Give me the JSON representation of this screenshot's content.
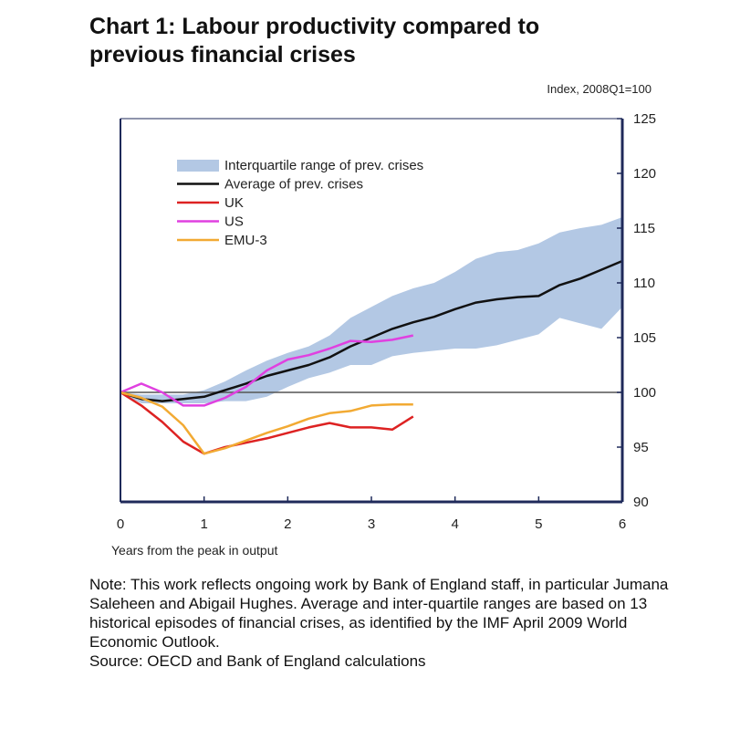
{
  "header": {
    "title_line1": "Chart 1: Labour productivity compared to",
    "title_line2": "previous financial crises",
    "units": "Index, 2008Q1=100"
  },
  "footer": {
    "note": "Note: This work reflects ongoing work by Bank of England staff, in particular Jumana Saleheen and Abigail Hughes.  Average and inter-quartile ranges are based on 13 historical episodes of financial crises, as identified by the IMF April 2009 World Economic Outlook.",
    "source": "Source: OECD and Bank of England calculations"
  },
  "chart_data": {
    "type": "line",
    "title": "Chart 1: Labour productivity compared to previous financial crises",
    "xlabel": "Years from the peak in output",
    "ylabel": "Index, 2008Q1=100",
    "xlim": [
      0,
      6
    ],
    "ylim": [
      90,
      125
    ],
    "x_ticks": [
      "0",
      "1",
      "2",
      "3",
      "4",
      "5",
      "6"
    ],
    "y_ticks": [
      "125",
      "120",
      "115",
      "110",
      "105",
      "100",
      "95",
      "90"
    ],
    "y_axis_side": "right",
    "reference_line": 100,
    "legend_position": "upper-left",
    "band": {
      "name": "Interquartile range of prev. crises",
      "color": "#b3c8e4",
      "x": [
        0,
        0.25,
        0.5,
        0.75,
        1,
        1.25,
        1.5,
        1.75,
        2,
        2.25,
        2.5,
        2.75,
        3,
        3.25,
        3.5,
        3.75,
        4,
        4.25,
        4.5,
        4.75,
        5,
        5.25,
        5.5,
        5.75,
        6
      ],
      "upper": [
        100,
        99.8,
        99.8,
        99.8,
        100.2,
        101,
        102,
        102.9,
        103.6,
        104.2,
        105.2,
        106.8,
        107.8,
        108.8,
        109.5,
        110,
        111,
        112.2,
        112.8,
        113,
        113.6,
        114.6,
        115,
        115.3,
        116
      ],
      "lower": [
        100,
        99,
        99,
        99,
        99,
        99.2,
        99.2,
        99.6,
        100.5,
        101.3,
        101.8,
        102.5,
        102.5,
        103.3,
        103.6,
        103.8,
        104,
        104,
        104.3,
        104.8,
        105.3,
        106.8,
        106.3,
        105.8,
        107.8
      ]
    },
    "series": [
      {
        "name": "Average of prev. crises",
        "color": "#111111",
        "x": [
          0,
          0.25,
          0.5,
          0.75,
          1,
          1.25,
          1.5,
          1.75,
          2,
          2.25,
          2.5,
          2.75,
          3,
          3.25,
          3.5,
          3.75,
          4,
          4.25,
          4.5,
          4.75,
          5,
          5.25,
          5.5,
          5.75,
          6
        ],
        "values": [
          100,
          99.4,
          99.2,
          99.4,
          99.6,
          100.2,
          100.8,
          101.5,
          102,
          102.5,
          103.2,
          104.2,
          105,
          105.8,
          106.4,
          106.9,
          107.6,
          108.2,
          108.5,
          108.7,
          108.8,
          109.8,
          110.4,
          111.2,
          112
        ]
      },
      {
        "name": "UK",
        "color": "#dd2222",
        "x": [
          0,
          0.25,
          0.5,
          0.75,
          1,
          1.25,
          1.5,
          1.75,
          2,
          2.25,
          2.5,
          2.75,
          3,
          3.25,
          3.5
        ],
        "values": [
          100,
          98.8,
          97.3,
          95.5,
          94.4,
          95,
          95.4,
          95.8,
          96.3,
          96.8,
          97.2,
          96.8,
          96.8,
          96.6,
          97.8
        ]
      },
      {
        "name": "US",
        "color": "#e040e0",
        "x": [
          0,
          0.25,
          0.5,
          0.75,
          1,
          1.25,
          1.5,
          1.75,
          2,
          2.25,
          2.5,
          2.75,
          3,
          3.25,
          3.5
        ],
        "values": [
          100,
          100.8,
          100,
          98.8,
          98.8,
          99.5,
          100.5,
          102,
          103,
          103.4,
          104,
          104.7,
          104.6,
          104.8,
          105.2
        ]
      },
      {
        "name": "EMU-3",
        "color": "#f2aa33",
        "x": [
          0,
          0.25,
          0.5,
          0.75,
          1,
          1.25,
          1.5,
          1.75,
          2,
          2.25,
          2.5,
          2.75,
          3,
          3.25,
          3.5
        ],
        "values": [
          100,
          99.5,
          98.7,
          97,
          94.4,
          94.9,
          95.6,
          96.3,
          96.9,
          97.6,
          98.1,
          98.3,
          98.8,
          98.9,
          98.9
        ]
      }
    ]
  }
}
